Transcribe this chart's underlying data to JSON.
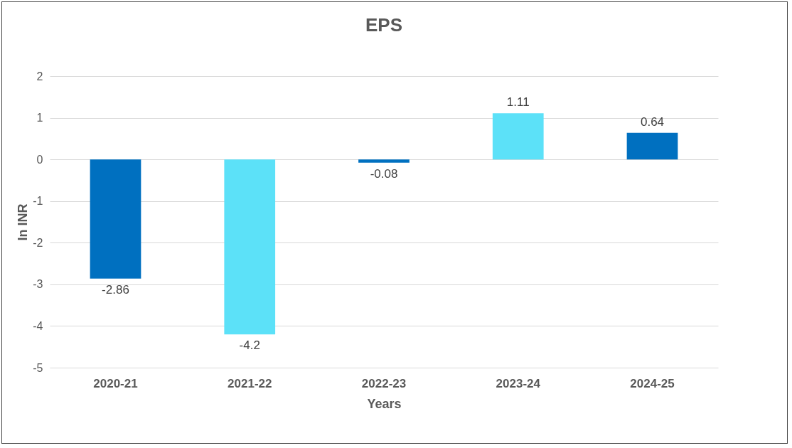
{
  "chart_data": {
    "type": "bar",
    "title": "EPS",
    "xlabel": "Years",
    "ylabel": "In INR",
    "categories": [
      "2020-21",
      "2021-22",
      "2022-23",
      "2023-24",
      "2024-25"
    ],
    "values": [
      -2.86,
      -4.2,
      -0.08,
      1.11,
      0.64
    ],
    "colors": [
      "#0070c0",
      "#5ce1f8",
      "#0070c0",
      "#5ce1f8",
      "#0070c0"
    ],
    "ylim": [
      -5,
      2
    ],
    "yticks": [
      -5,
      -4,
      -3,
      -2,
      -1,
      0,
      1,
      2
    ],
    "grid": "y",
    "data_labels": true,
    "legend": false
  }
}
